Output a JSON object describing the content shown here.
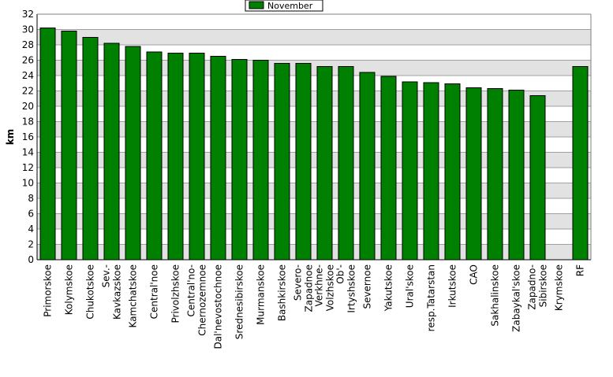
{
  "chart_data": {
    "type": "bar",
    "ylabel": "km",
    "ylim": [
      0,
      32
    ],
    "ytick_step": 2,
    "grid": true,
    "legend_position": "top-center",
    "colors": {
      "bar": "#008000",
      "bar_stroke": "#000000",
      "plot_bg_dark": "#e2e2e2",
      "plot_bg_light": "#ffffff",
      "grid": "#a0a0a0"
    },
    "series": [
      {
        "name": "November",
        "values": [
          30.2,
          29.8,
          29.0,
          28.2,
          27.8,
          27.1,
          26.9,
          26.9,
          26.5,
          26.1,
          26.0,
          25.6,
          25.6,
          25.2,
          25.2,
          24.4,
          23.9,
          23.2,
          23.1,
          22.9,
          22.4,
          22.3,
          22.1,
          21.4,
          null,
          25.2
        ]
      }
    ],
    "categories": [
      "Primorskoe",
      "Kolymskoe",
      "Chukotskoe",
      "Sev.-Kavkazskoe",
      "Kamchatskoe",
      "Central'noe",
      "Privolzhskoe",
      "Central'no-Chernozemnoe",
      "Dal'nevostochnoe",
      "Srednesibirskoe",
      "Murmanskoe",
      "Bashkirskoe",
      "Severo-Zapadnoe",
      "Verkhne-Volzhskoe",
      "Ob'-Irtyshskoe",
      "Severnoe",
      "Yakutskoe",
      "Ural'skoe",
      "resp.Tatarstan",
      "Irkutskoe",
      "CAO",
      "Sakhalinskoe",
      "Zabaykal'skoe",
      "Zapadno-Sibirskoe",
      "Krymskoe",
      "RF"
    ],
    "category_lines": [
      [
        "Primorskoe"
      ],
      [
        "Kolymskoe"
      ],
      [
        "Chukotskoe"
      ],
      [
        "Sev.-",
        "Kavkazskoe"
      ],
      [
        "Kamchatskoe"
      ],
      [
        "Central'noe"
      ],
      [
        "Privolzhskoe"
      ],
      [
        "Central'no-",
        "Chernozemnoe"
      ],
      [
        "Dal'nevostochnoe"
      ],
      [
        "Srednesibirskoe"
      ],
      [
        "Murmanskoe"
      ],
      [
        "Bashkirskoe"
      ],
      [
        "Severo-",
        "Zapadnoe"
      ],
      [
        "Verkhne-",
        "Volzhskoe"
      ],
      [
        "Ob'-",
        "Irtyshskoe"
      ],
      [
        "Severnoe"
      ],
      [
        "Yakutskoe"
      ],
      [
        "Ural'skoe"
      ],
      [
        "resp.Tatarstan"
      ],
      [
        "Irkutskoe"
      ],
      [
        "CAO"
      ],
      [
        "Sakhalinskoe"
      ],
      [
        "Zabaykal'skoe"
      ],
      [
        "Zapadno-",
        "Sibirskoe"
      ],
      [
        "Krymskoe"
      ],
      [
        "RF"
      ]
    ]
  }
}
